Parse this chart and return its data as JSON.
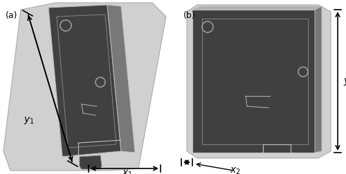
{
  "fig_width": 5.0,
  "fig_height": 2.53,
  "dpi": 100,
  "bg_color": "#ffffff",
  "label_a": "(a)",
  "label_b": "(b)",
  "light_gray": "#d0d0d0",
  "light_gray2": "#c8c8c8",
  "mid_gray": "#a8a8a8",
  "dark_gray": "#404040",
  "side_gray": "#787878",
  "top_gray": "#b0b0b0",
  "arrow_color": "#000000",
  "inner_edge": "#888888",
  "plate_edge": "#c0c0c0"
}
